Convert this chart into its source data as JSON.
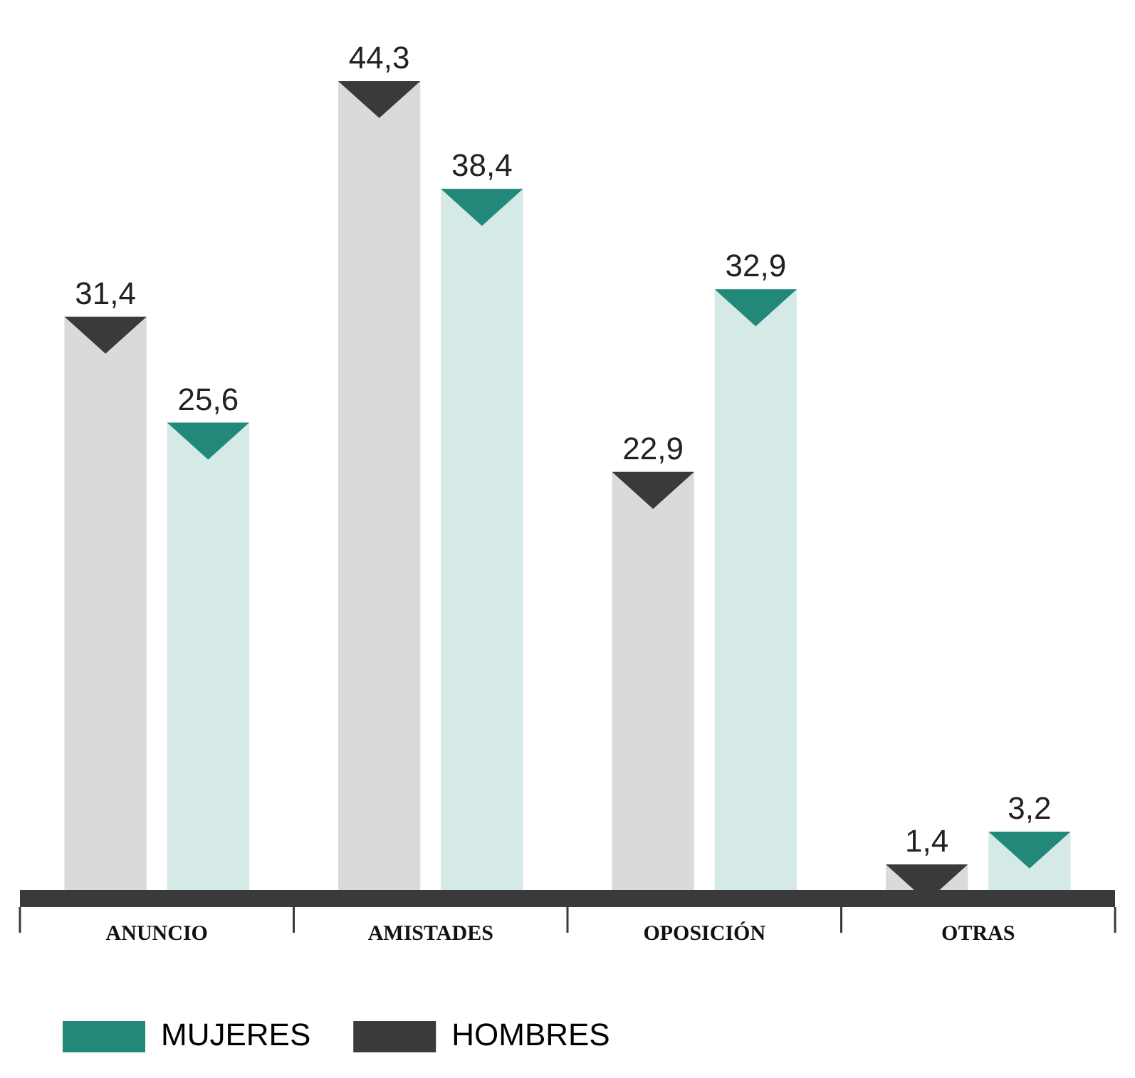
{
  "chart_data": {
    "type": "bar",
    "categories": [
      "ANUNCIO",
      "AMISTADES",
      "OPOSICIÓN",
      "OTRAS"
    ],
    "series": [
      {
        "name": "HOMBRES",
        "color": "#3a3a3c",
        "values": [
          31.4,
          44.3,
          22.9,
          1.4
        ],
        "value_labels": [
          "31,4",
          "44,3",
          "22,9",
          "1,4"
        ]
      },
      {
        "name": "MUJERES",
        "color": "#22897a",
        "values": [
          25.6,
          38.4,
          32.9,
          3.2
        ],
        "value_labels": [
          "25,6",
          "38,4",
          "32,9",
          "3,2"
        ]
      }
    ],
    "legend": "bottom",
    "grid": false
  }
}
